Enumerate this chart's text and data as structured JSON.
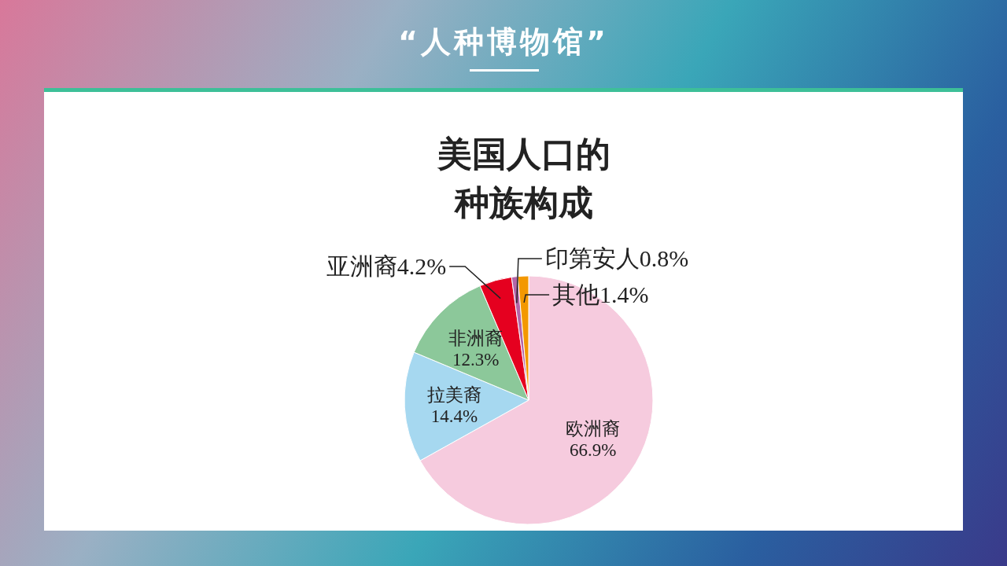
{
  "chart_data": {
    "type": "pie",
    "title": "“人种博物馆”",
    "subtitle": "美国人口的种族构成",
    "categories": [
      "欧洲裔",
      "拉美裔",
      "非洲裔",
      "亚洲裔",
      "印第安人",
      "其他"
    ],
    "values": [
      66.9,
      14.4,
      12.3,
      4.2,
      0.8,
      1.4
    ],
    "value_labels": [
      "66.9%",
      "14.4%",
      "12.3%",
      "4.2%",
      "0.8%",
      "1.4%"
    ],
    "colors": [
      "#f6cbde",
      "#a6d8f0",
      "#8cc89a",
      "#e5001f",
      "#b366a8",
      "#f39800"
    ]
  }
}
